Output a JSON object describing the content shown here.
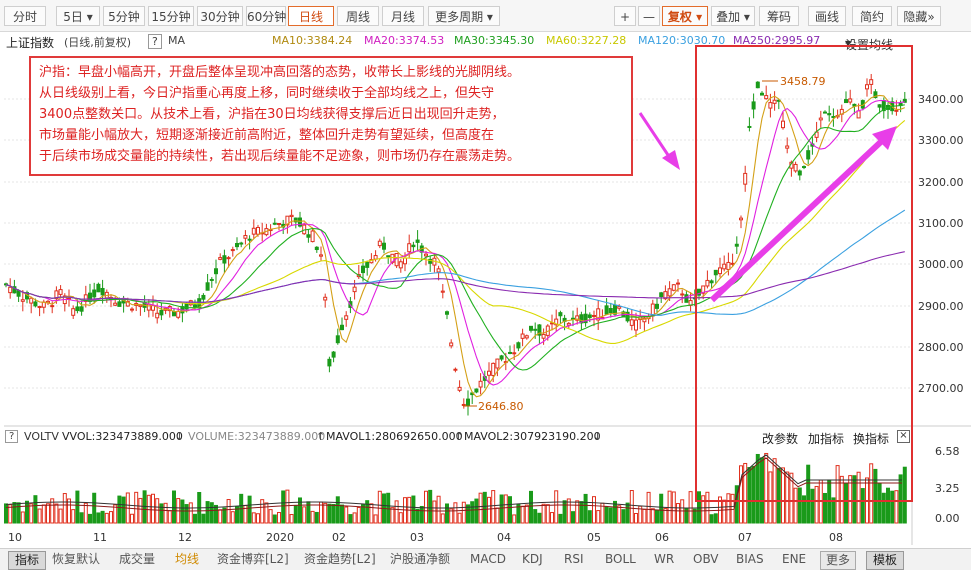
{
  "toolbar": {
    "periods": [
      "分时",
      "5日",
      "5分钟",
      "15分钟",
      "30分钟",
      "60分钟",
      "日线",
      "周线",
      "月线",
      "更多周期"
    ],
    "active_period": "日线",
    "plus": "+",
    "minus": "—",
    "fuquan": "复权",
    "diejia": "叠加",
    "chouma": "筹码",
    "huaxian": "画线",
    "jianyue": "简约",
    "yincang": "隐藏"
  },
  "info": {
    "index_name": "上证指数",
    "mode": "(日线,前复权)",
    "help": "?",
    "indicator": "MA",
    "ma10": "MA10:3384.24",
    "ma20": "MA20:3374.53",
    "ma30": "MA30:3345.30",
    "ma60": "MA60:3227.28",
    "ma120": "MA120:3030.70",
    "ma250": "MA250:2995.97",
    "settings": "设置均线",
    "colors": {
      "ma10": "#d4a017",
      "ma20": "#e020e0",
      "ma30": "#20b020",
      "ma60": "#d8d800",
      "ma120": "#3aa0e0",
      "ma250": "#8a2bb0"
    }
  },
  "annotation": {
    "lines": [
      "沪指：早盘小幅高开，开盘后整体呈现冲高回落的态势，收带长上影线的光脚阴线。",
      "从日线级别上看，今日沪指重心再度上移，同时继续收于全部均线之上，但失守",
      "3400点整数关口。从技术上看，沪指在30日均线获得支撑后近日出现回升走势，",
      "市场量能小幅放大，短期逐渐接近前高附近，整体回升走势有望延续，但高度在",
      "于后续市场成交量能的持续性，若出现后续量能不足迹象，则市场仍存在震荡走势。"
    ]
  },
  "price_axis": [
    "3400.00",
    "3300.00",
    "3200.00",
    "3100.00",
    "3000.00",
    "2900.00",
    "2800.00",
    "2700.00"
  ],
  "markers": {
    "high": "3458.79",
    "low": "2646.80"
  },
  "volume": {
    "name": "VOLTV",
    "vvol": "VVOL:323473889.000",
    "volume": "VOLUME:323473889.000",
    "mavol1": "MAVOL1:280692650.000",
    "mavol2": "MAVOL2:307923190.200",
    "params": "改参数",
    "add": "加指标",
    "switch": "换指标",
    "axis": [
      "6.58",
      "3.25",
      "0.00"
    ]
  },
  "time_axis": [
    "10",
    "11",
    "12",
    "2020",
    "02",
    "03",
    "04",
    "05",
    "06",
    "07",
    "08"
  ],
  "bottom_tabs": [
    "指标",
    "恢复默认",
    "成交量",
    "均线",
    "资金博弈[L2]",
    "资金趋势[L2]",
    "沪股通净额",
    "MACD",
    "KDJ",
    "RSI",
    "BOLL",
    "WR",
    "OBV",
    "BIAS",
    "ENE",
    "更多",
    "模板"
  ],
  "selected_tab": "均线"
}
